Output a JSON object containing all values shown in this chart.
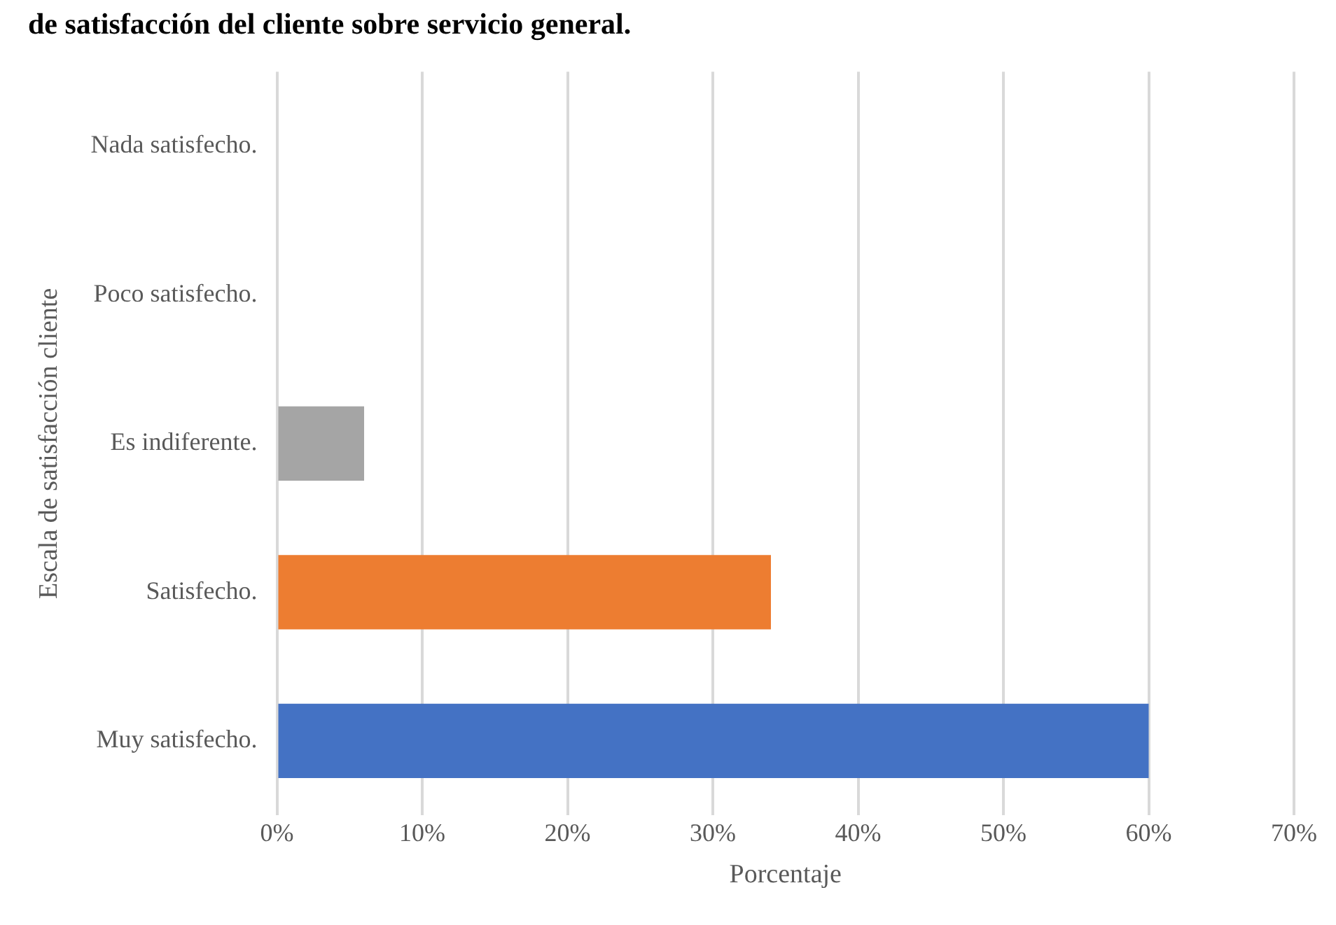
{
  "chart_data": {
    "type": "bar",
    "orientation": "horizontal",
    "title": "de satisfacción del cliente sobre servicio general.",
    "xlabel": "Porcentaje",
    "ylabel": "Escala de satisfacción cliente",
    "categories": [
      "Nada satisfecho.",
      "Poco satisfecho.",
      "Es indiferente.",
      "Satisfecho.",
      "Muy satisfecho."
    ],
    "values": [
      0,
      0,
      6,
      34,
      60
    ],
    "colors": [
      "#a5a5a5",
      "#a5a5a5",
      "#a5a5a5",
      "#ed7d31",
      "#4472c4"
    ],
    "xlim": [
      0,
      70
    ],
    "xticks": [
      {
        "value": 0,
        "label": "0%"
      },
      {
        "value": 10,
        "label": "10%"
      },
      {
        "value": 20,
        "label": "20%"
      },
      {
        "value": 30,
        "label": "30%"
      },
      {
        "value": 40,
        "label": "40%"
      },
      {
        "value": 50,
        "label": "50%"
      },
      {
        "value": 60,
        "label": "60%"
      },
      {
        "value": 70,
        "label": "70%"
      }
    ],
    "grid": "x"
  }
}
